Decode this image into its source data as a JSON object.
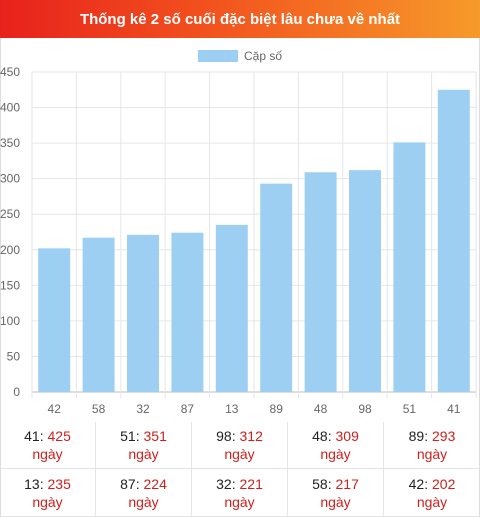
{
  "header": {
    "title": "Thống kê 2 số cuối đặc biệt lâu chưa về nhất"
  },
  "colors": {
    "header_start": "#e8211c",
    "header_end": "#f79a2a",
    "bar": "#9dcff3",
    "value": "#d0201d"
  },
  "chart_data": {
    "type": "bar",
    "title": "",
    "xlabel": "",
    "ylabel": "",
    "legend_position": "top-center",
    "grid": true,
    "ylim": [
      0,
      450
    ],
    "yticks": [
      0,
      50,
      100,
      150,
      200,
      250,
      300,
      350,
      400,
      450
    ],
    "categories": [
      "42",
      "58",
      "32",
      "87",
      "13",
      "89",
      "48",
      "98",
      "51",
      "41"
    ],
    "series": [
      {
        "name": "Cặp số",
        "values": [
          202,
          217,
          221,
          224,
          235,
          293,
          309,
          312,
          351,
          425
        ]
      }
    ]
  },
  "stats": {
    "unit": "ngày",
    "items": [
      {
        "number": "41",
        "days": "425"
      },
      {
        "number": "51",
        "days": "351"
      },
      {
        "number": "98",
        "days": "312"
      },
      {
        "number": "48",
        "days": "309"
      },
      {
        "number": "89",
        "days": "293"
      },
      {
        "number": "13",
        "days": "235"
      },
      {
        "number": "87",
        "days": "224"
      },
      {
        "number": "32",
        "days": "221"
      },
      {
        "number": "58",
        "days": "217"
      },
      {
        "number": "42",
        "days": "202"
      }
    ]
  }
}
